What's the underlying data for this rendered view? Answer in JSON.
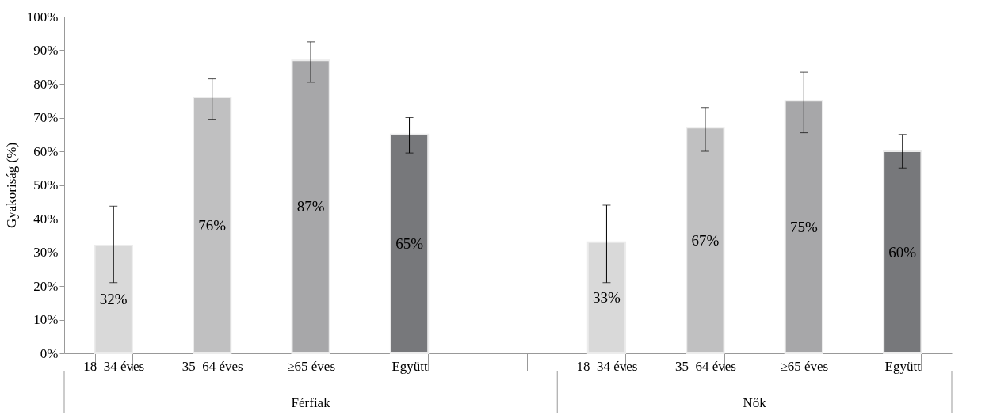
{
  "chart_data": {
    "type": "bar",
    "ylabel": "Gyakoriság (%)",
    "categories": [
      "18–34 éves",
      "35–64 éves",
      "≥65 éves",
      "Együtt",
      null,
      "18–34 éves",
      "35–64 éves",
      "≥65 éves",
      "Együtt"
    ],
    "values": [
      32,
      76,
      87,
      65,
      null,
      33,
      67,
      75,
      60
    ],
    "colors": [
      "#d9d9d9",
      "#c0c0c1",
      "#a7a7a9",
      "#77787b",
      null,
      "#d9d9d9",
      "#c0c0c1",
      "#a7a7a9",
      "#77787b"
    ],
    "errors": [
      [
        21,
        43.7
      ],
      [
        69.5,
        81.5
      ],
      [
        80.5,
        92.5
      ],
      [
        59.5,
        70
      ],
      null,
      [
        21,
        44
      ],
      [
        60,
        73
      ],
      [
        65.5,
        83.5
      ],
      [
        55,
        65
      ]
    ],
    "value_labels": [
      "32%",
      "76%",
      "87%",
      "65%",
      null,
      "33%",
      "67%",
      "75%",
      "60%"
    ],
    "annotations": [
      "Férfiak",
      "Nők"
    ],
    "ylim": [
      0,
      100
    ],
    "yticks": [
      {
        "value": 0,
        "label": "0%"
      },
      {
        "value": 10,
        "label": "10%"
      },
      {
        "value": 20,
        "label": "20%"
      },
      {
        "value": 30,
        "label": "30%"
      },
      {
        "value": 40,
        "label": "40%"
      },
      {
        "value": 50,
        "label": "50%"
      },
      {
        "value": 60,
        "label": "60%"
      },
      {
        "value": 70,
        "label": "70%"
      },
      {
        "value": 80,
        "label": "80%"
      },
      {
        "value": 90,
        "label": "90%"
      },
      {
        "value": 100,
        "label": "100%"
      }
    ],
    "grid": false
  }
}
